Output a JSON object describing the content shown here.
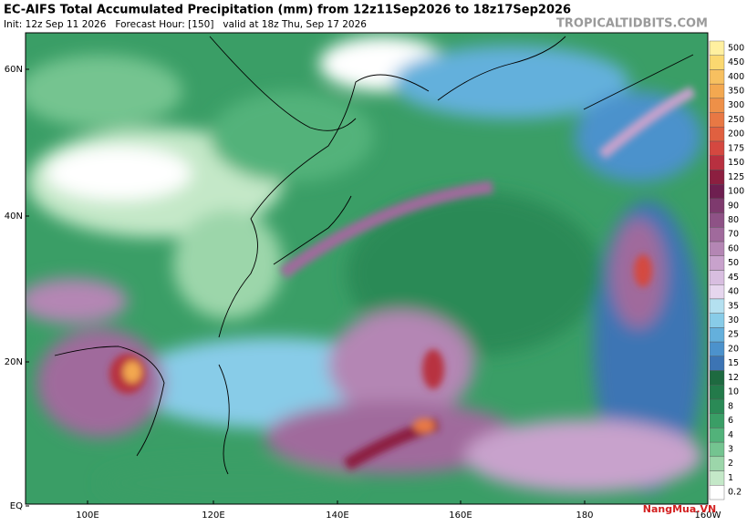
{
  "header": {
    "title": "EC-AIFS Total Accumulated Precipitation (mm) from 12z11Sep2026 to 18z17Sep2026",
    "subtitle": "Init: 12z Sep 11 2026   Forecast Hour: [150]   valid at 18z Thu, Sep 17 2026",
    "site": "TROPICALTIDBITS.COM"
  },
  "map": {
    "lat_labels": [
      "60N",
      "40N",
      "20N",
      "EQ"
    ],
    "lon_labels": [
      "100E",
      "120E",
      "140E",
      "160E",
      "180",
      "160W"
    ]
  },
  "colorbar": {
    "levels": [
      500,
      450,
      400,
      350,
      300,
      250,
      200,
      175,
      150,
      125,
      100,
      90,
      80,
      70,
      60,
      50,
      45,
      40,
      35,
      30,
      25,
      20,
      15,
      12,
      10,
      8,
      6,
      4,
      3,
      2,
      1,
      0.2
    ],
    "colors": [
      "#fff0a0",
      "#fbd870",
      "#f7c060",
      "#f3a850",
      "#ee9048",
      "#e87844",
      "#e06040",
      "#d44840",
      "#b83040",
      "#8c1f40",
      "#6e1f50",
      "#7e3a6e",
      "#8e5286",
      "#a06a9c",
      "#b486b4",
      "#c8a2cc",
      "#d8bee0",
      "#e6d6ee",
      "#b4e0f0",
      "#88cce8",
      "#64b0dc",
      "#4c92cc",
      "#3c74b4",
      "#1e6a40",
      "#237a4a",
      "#2a8a56",
      "#3a9e66",
      "#52b27a",
      "#74c490",
      "#9cd6aa",
      "#c4e8c8",
      "#ffffff"
    ]
  },
  "watermark": "NangMua.VN"
}
